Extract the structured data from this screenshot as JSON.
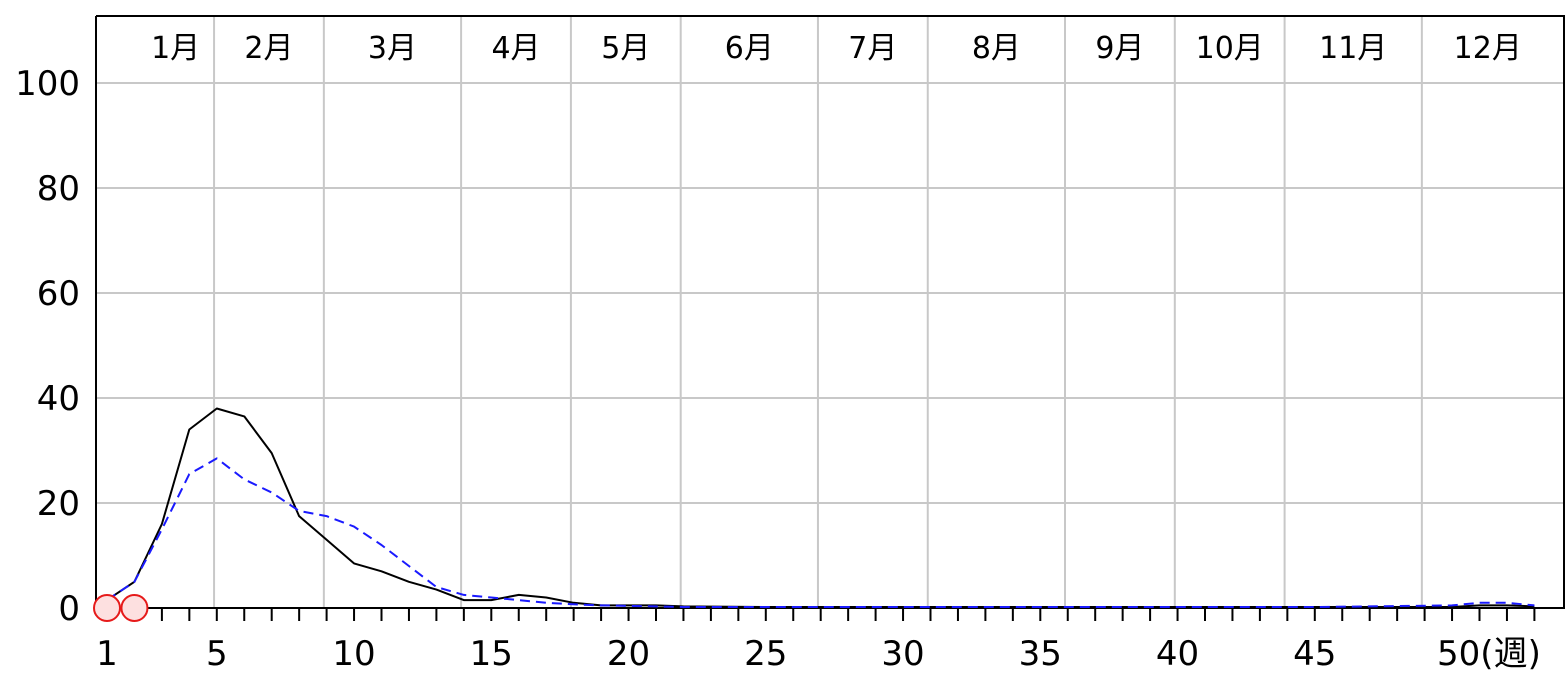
{
  "chart_data": {
    "type": "line",
    "title": "",
    "xlabel": "",
    "ylabel": "",
    "x_unit_label": "(週)",
    "xlim": [
      1,
      53
    ],
    "ylim": [
      0,
      110
    ],
    "y_ticks": [
      0,
      20,
      40,
      60,
      80,
      100
    ],
    "x_tick_labels": [
      {
        "week": 1,
        "label": "1"
      },
      {
        "week": 5,
        "label": "5"
      },
      {
        "week": 10,
        "label": "10"
      },
      {
        "week": 15,
        "label": "15"
      },
      {
        "week": 20,
        "label": "20"
      },
      {
        "week": 25,
        "label": "25"
      },
      {
        "week": 30,
        "label": "30"
      },
      {
        "week": 35,
        "label": "35"
      },
      {
        "week": 40,
        "label": "40"
      },
      {
        "week": 45,
        "label": "45"
      },
      {
        "week": 50,
        "label": "50"
      }
    ],
    "month_boundaries": [
      4.9,
      8.9,
      13.9,
      17.9,
      21.9,
      26.9,
      30.9,
      35.9,
      39.9,
      43.9,
      48.9
    ],
    "month_labels": [
      {
        "label": "1月",
        "week": 3.5
      },
      {
        "label": "2月",
        "week": 6.9
      },
      {
        "label": "3月",
        "week": 11.4
      },
      {
        "label": "4月",
        "week": 15.9
      },
      {
        "label": "5月",
        "week": 19.9
      },
      {
        "label": "6月",
        "week": 24.4
      },
      {
        "label": "7月",
        "week": 28.9
      },
      {
        "label": "8月",
        "week": 33.4
      },
      {
        "label": "9月",
        "week": 37.9
      },
      {
        "label": "10月",
        "week": 41.9
      },
      {
        "label": "11月",
        "week": 46.4
      },
      {
        "label": "12月",
        "week": 51.3
      }
    ],
    "grid": true,
    "legend": "none",
    "series": [
      {
        "style": "solid",
        "color": "#000000",
        "x": [
          1,
          2,
          3,
          4,
          5,
          6,
          7,
          8,
          9,
          10,
          11,
          12,
          13,
          14,
          15,
          16,
          17,
          18,
          19,
          20,
          21,
          22,
          25,
          30,
          35,
          40,
          45,
          50,
          51,
          52,
          53
        ],
        "values": [
          1.5,
          5,
          16,
          34,
          38,
          36.5,
          29.5,
          17.5,
          13,
          8.5,
          7,
          5,
          3.5,
          1.5,
          1.5,
          2.5,
          2,
          1,
          0.5,
          0.5,
          0.5,
          0.3,
          0.2,
          0.2,
          0.2,
          0.2,
          0.2,
          0.2,
          0.5,
          0.5,
          0.3
        ]
      },
      {
        "style": "dashed",
        "color": "#1a1aff",
        "x": [
          1,
          2,
          3,
          4,
          5,
          6,
          7,
          8,
          9,
          10,
          11,
          12,
          13,
          14,
          15,
          16,
          17,
          18,
          19,
          20,
          21,
          22,
          25,
          30,
          35,
          40,
          45,
          50,
          51,
          52,
          53
        ],
        "values": [
          1.5,
          5,
          15,
          25.5,
          28.5,
          24.5,
          22,
          18.5,
          17.5,
          15.5,
          12,
          8,
          4,
          2.5,
          2,
          1.5,
          1,
          0.7,
          0.5,
          0.4,
          0.3,
          0.2,
          0.2,
          0.2,
          0.2,
          0.2,
          0.2,
          0.5,
          1,
          1,
          0.5
        ]
      }
    ],
    "highlight_markers": {
      "color": "#e61a1a",
      "fill": "#fde0e0",
      "points": [
        {
          "x": 1,
          "y": 0
        },
        {
          "x": 2,
          "y": 0
        }
      ]
    }
  }
}
